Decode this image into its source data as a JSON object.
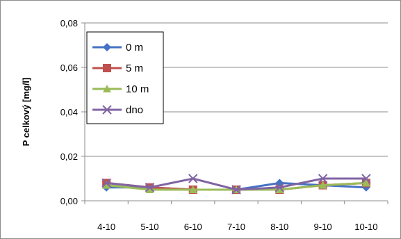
{
  "chart_data": {
    "type": "line",
    "title": "",
    "xlabel": "",
    "ylabel": "P celkový [mg/l]",
    "categories": [
      "4-10",
      "5-10",
      "6-10",
      "7-10",
      "8-10",
      "9-10",
      "10-10"
    ],
    "ylim": [
      0,
      0.08
    ],
    "yticks": [
      "0,00",
      "0,02",
      "0,04",
      "0,06",
      "0,08"
    ],
    "grid": true,
    "legend": "top-left",
    "series": [
      {
        "name": "0 m",
        "color": "#4472c4",
        "marker": "diamond",
        "values": [
          0.006,
          0.006,
          0.005,
          0.005,
          0.008,
          0.007,
          0.006
        ]
      },
      {
        "name": "5 m",
        "color": "#c0504d",
        "marker": "square",
        "values": [
          0.008,
          0.006,
          0.005,
          0.005,
          0.005,
          0.007,
          0.008
        ]
      },
      {
        "name": "10 m",
        "color": "#9bbb59",
        "marker": "triangle",
        "values": [
          0.007,
          0.005,
          0.005,
          0.005,
          0.005,
          0.007,
          0.008
        ]
      },
      {
        "name": "dno",
        "color": "#8064a2",
        "marker": "x",
        "values": [
          0.008,
          0.006,
          0.01,
          0.005,
          0.006,
          0.01,
          0.01
        ]
      }
    ]
  }
}
